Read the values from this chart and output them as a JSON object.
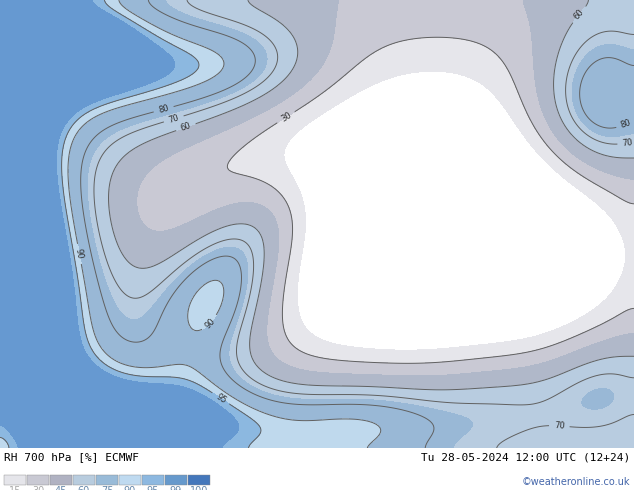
{
  "title_left": "RH 700 hPa [%] ECMWF",
  "title_right": "Tu 28-05-2024 12:00 UTC (12+24)",
  "copyright": "©weatheronline.co.uk",
  "levels": [
    0,
    15,
    30,
    45,
    60,
    75,
    90,
    95,
    99,
    101
  ],
  "legend_levels": [
    15,
    30,
    45,
    60,
    75,
    90,
    95,
    99,
    100
  ],
  "colors": [
    "#ffffff",
    "#e0e0e8",
    "#c8c8d8",
    "#b0b8cc",
    "#98a8be",
    "#8898b0",
    "#b8cce0",
    "#88aacc",
    "#6688b8"
  ],
  "contour_levels": [
    30,
    60,
    70,
    80,
    90,
    95
  ],
  "lon_min": -80,
  "lon_max": 20,
  "lat_min": 25,
  "lat_max": 72,
  "figsize": [
    6.34,
    4.9
  ],
  "dpi": 100
}
